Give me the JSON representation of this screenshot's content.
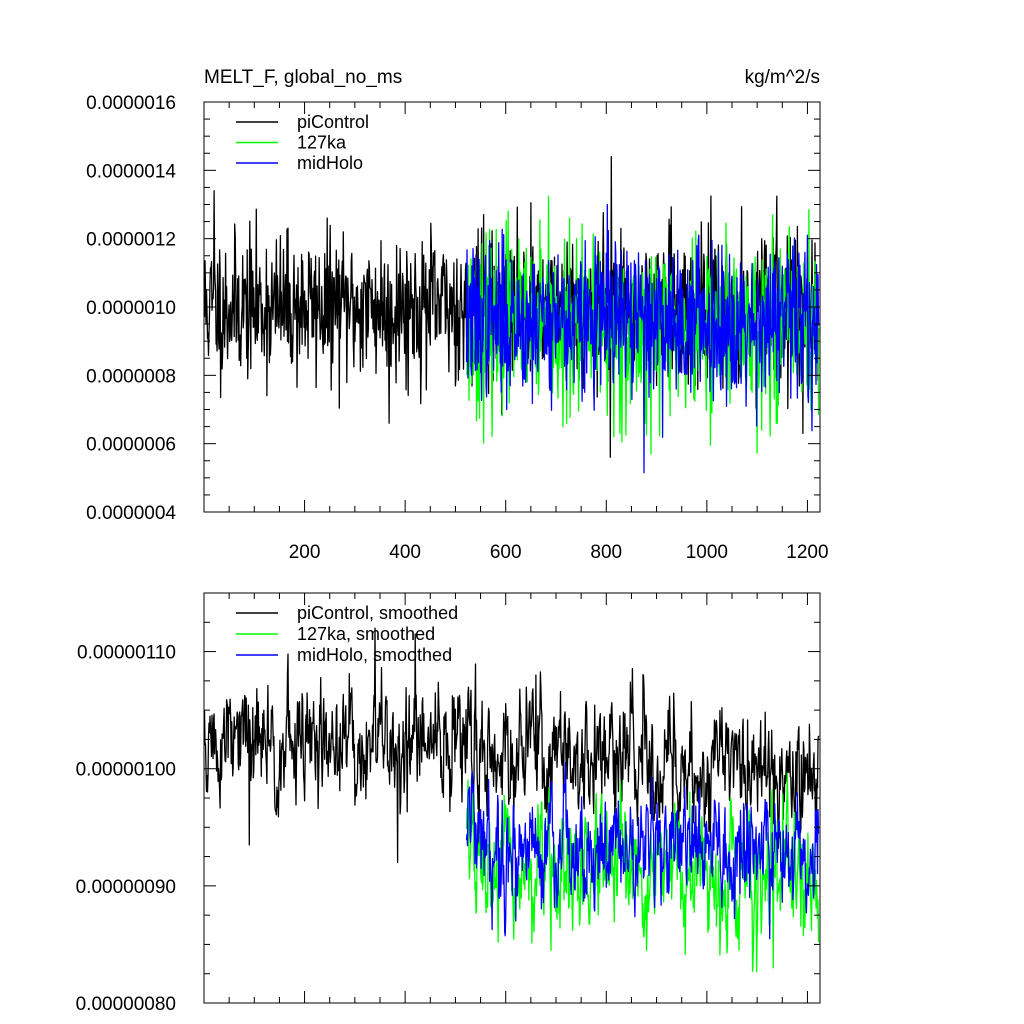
{
  "chart_data": [
    {
      "type": "line",
      "title_left": "MELT_F, global_no_ms",
      "title_right": "kg/m^2/s",
      "xlabel": "",
      "ylabel": "",
      "xlim": [
        0,
        1225
      ],
      "ylim": [
        4e-07,
        1.6e-06
      ],
      "x_ticks": [
        200,
        400,
        600,
        800,
        1000,
        1200
      ],
      "x_tick_labels": [
        "200",
        "400",
        "600",
        "800",
        "1000",
        "1200"
      ],
      "y_ticks": [
        4e-07,
        6e-07,
        8e-07,
        1e-06,
        1.2e-06,
        1.4e-06,
        1.6e-06
      ],
      "y_tick_labels": [
        "0.0000004",
        "0.0000006",
        "0.0000008",
        "0.0000010",
        "0.0000012",
        "0.0000014",
        "0.0000016"
      ],
      "legend_position": "top-left",
      "series": [
        {
          "name": "piControl",
          "color": "#000000",
          "x_start": 1,
          "x_end": 1222,
          "mean": 1e-06,
          "spread": 1.05e-07,
          "seed": 11,
          "spikes": [
            [
              810,
              1.44e-06
            ],
            [
              808,
              5.6e-07
            ],
            [
              368,
              6.6e-07
            ],
            [
              1191,
              6.3e-07
            ],
            [
              20,
              1.34e-06
            ]
          ]
        },
        {
          "name": "127ka",
          "color": "#00ff00",
          "x_start": 522,
          "x_end": 1222,
          "mean": 9.4e-07,
          "spread": 1.25e-07,
          "seed": 23,
          "spikes": [
            [
              605,
              1.28e-06
            ],
            [
              815,
              6.2e-07
            ],
            [
              714,
              6.5e-07
            ],
            [
              1131,
              1.27e-06
            ]
          ]
        },
        {
          "name": "midHolo",
          "color": "#0000ff",
          "x_start": 522,
          "x_end": 1222,
          "mean": 9.6e-07,
          "spread": 1.1e-07,
          "seed": 37,
          "spikes": [
            [
              875,
              5.15e-07
            ],
            [
              802,
              1.3e-06
            ],
            [
              1200,
              1.21e-06
            ]
          ]
        }
      ]
    },
    {
      "type": "line",
      "title_left": "",
      "title_right": "",
      "xlabel": "",
      "ylabel": "",
      "xlim": [
        0,
        1225
      ],
      "ylim": [
        8e-07,
        1.15e-06
      ],
      "x_ticks": [
        200,
        400,
        600,
        800,
        1000,
        1200
      ],
      "x_tick_labels": [],
      "y_ticks": [
        8e-07,
        9e-07,
        1e-06,
        1.1e-06
      ],
      "y_tick_labels": [
        "0.00000080",
        "0.00000090",
        "0.00000100",
        "0.00000110"
      ],
      "legend_position": "top-left",
      "series": [
        {
          "name": "piControl, smoothed",
          "color": "#000000",
          "x_start": 1,
          "x_end": 1222,
          "mean": 1.015e-06,
          "spread": 2.6e-08,
          "seed": 51,
          "trend": [
            [
              1,
              1.02e-06
            ],
            [
              520,
              1.02e-06
            ],
            [
              1222,
              9.95e-07
            ]
          ],
          "spikes": [
            [
              340,
              1.12e-06
            ],
            [
              420,
              1.115e-06
            ],
            [
              90,
              9.35e-07
            ],
            [
              385,
              9.2e-07
            ],
            [
              660,
              1.08e-06
            ]
          ]
        },
        {
          "name": "127ka, smoothed",
          "color": "#00ff00",
          "x_start": 522,
          "x_end": 1222,
          "mean": 9.2e-07,
          "spread": 2.5e-08,
          "seed": 67,
          "trend": [
            [
              522,
              9.7e-07
            ],
            [
              540,
              9.1e-07
            ],
            [
              1222,
              9.05e-07
            ]
          ],
          "spikes": [
            [
              1132,
              8.3e-07
            ],
            [
              690,
              8.45e-07
            ],
            [
              880,
              8.45e-07
            ]
          ]
        },
        {
          "name": "midHolo, smoothed",
          "color": "#0000ff",
          "x_start": 522,
          "x_end": 1222,
          "mean": 9.45e-07,
          "spread": 2.4e-08,
          "seed": 79,
          "trend": [
            [
              522,
              9.7e-07
            ],
            [
              545,
              9.35e-07
            ],
            [
              1222,
              9.3e-07
            ]
          ],
          "spikes": [
            [
              1125,
              8.55e-07
            ],
            [
              620,
              8.7e-07
            ]
          ]
        }
      ]
    }
  ]
}
